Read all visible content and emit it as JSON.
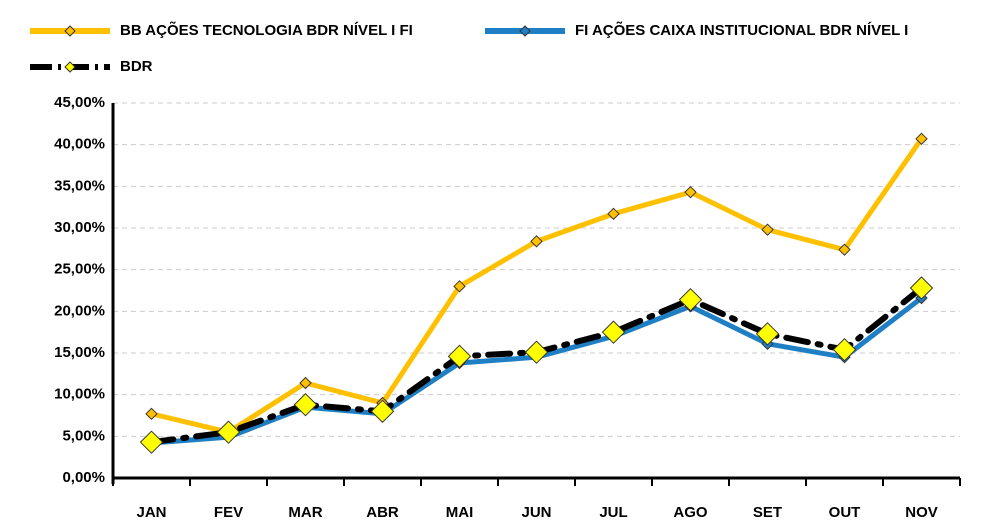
{
  "chart_data": {
    "type": "line",
    "categories": [
      "JAN",
      "FEV",
      "MAR",
      "ABR",
      "MAI",
      "JUN",
      "JUL",
      "AGO",
      "SET",
      "OUT",
      "NOV"
    ],
    "series": [
      {
        "name": "BB AÇÕES TECNOLOGIA BDR NÍVEL I FI",
        "color": "#ffc000",
        "marker_color": "#ffc000",
        "values": [
          7.7,
          5.5,
          11.4,
          9.0,
          23.0,
          28.4,
          31.7,
          34.3,
          29.8,
          27.4,
          40.7
        ]
      },
      {
        "name": "FI AÇÕES CAIXA INSTITUCIONAL BDR NÍVEL I",
        "color": "#1f7fc4",
        "marker_color": "#1f7fc4",
        "values": [
          4.2,
          4.9,
          8.5,
          7.7,
          13.8,
          14.5,
          17.0,
          20.6,
          16.1,
          14.5,
          21.6
        ]
      },
      {
        "name": "BDR",
        "color": "#000000",
        "marker_color": "#ffff00",
        "values": [
          4.3,
          5.5,
          8.8,
          8.0,
          14.6,
          15.1,
          17.5,
          21.4,
          17.3,
          15.4,
          22.8
        ]
      }
    ],
    "ylim": [
      0,
      45
    ],
    "yticks": [
      {
        "value": 0,
        "label": "0,00%"
      },
      {
        "value": 5,
        "label": "5,00%"
      },
      {
        "value": 10,
        "label": "10,00%"
      },
      {
        "value": 15,
        "label": "15,00%"
      },
      {
        "value": 20,
        "label": "20,00%"
      },
      {
        "value": 25,
        "label": "25,00%"
      },
      {
        "value": 30,
        "label": "30,00%"
      },
      {
        "value": 35,
        "label": "35,00%"
      },
      {
        "value": 40,
        "label": "40,00%"
      },
      {
        "value": 45,
        "label": "45,00%"
      }
    ],
    "grid": true
  }
}
